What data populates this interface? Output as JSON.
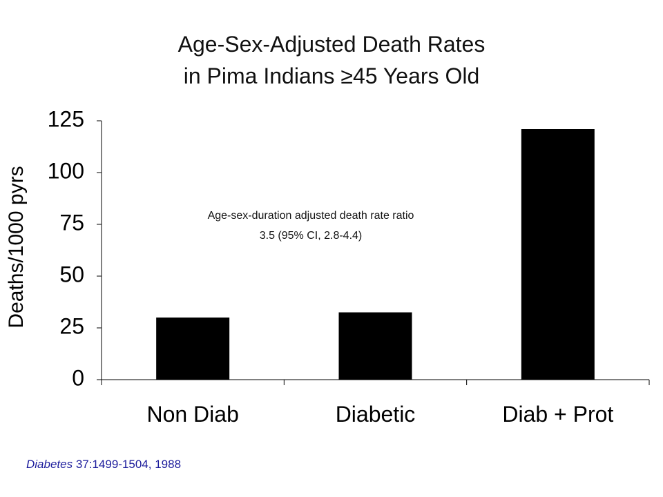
{
  "chart_data": {
    "type": "bar",
    "title": [
      "Age-Sex-Adjusted Death Rates",
      "in Pima Indians ≥45 Years Old"
    ],
    "xlabel": "",
    "ylabel": "Deaths/1000 pyrs",
    "categories": [
      "Non Diab",
      "Diabetic",
      "Diab + Prot"
    ],
    "values": [
      30,
      32.5,
      121
    ],
    "ylim": [
      0,
      125
    ],
    "yticks": [
      0,
      25,
      50,
      75,
      100,
      125
    ],
    "bar_color": "#000000",
    "grid": false,
    "annotation": [
      "Age-sex-duration adjusted death rate ratio",
      "3.5 (95% CI, 2.8-4.4)"
    ]
  },
  "source": {
    "journal": "Diabetes",
    "citation": " 37:1499-1504,  1988"
  }
}
